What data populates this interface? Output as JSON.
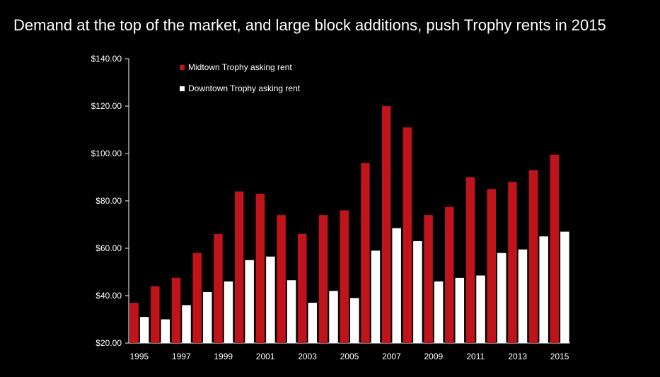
{
  "chart_data": {
    "type": "bar",
    "title": "Demand at the top of the market, and large block additions, push Trophy rents in 2015",
    "xlabel": "",
    "ylabel": "",
    "ylim": [
      20,
      140
    ],
    "y_ticks": [
      "$20.00",
      "$40.00",
      "$60.00",
      "$80.00",
      "$100.00",
      "$120.00",
      "$140.00"
    ],
    "categories": [
      "1995",
      "1996",
      "1997",
      "1998",
      "1999",
      "2000",
      "2001",
      "2002",
      "2003",
      "2004",
      "2005",
      "2006",
      "2007",
      "2008",
      "2009",
      "2010",
      "2011",
      "2012",
      "2013",
      "2014",
      "2015"
    ],
    "x_tick_labels": [
      "1995",
      "",
      "1997",
      "",
      "1999",
      "",
      "2001",
      "",
      "2003",
      "",
      "2005",
      "",
      "2007",
      "",
      "2009",
      "",
      "2011",
      "",
      "2013",
      "",
      "2015"
    ],
    "series": [
      {
        "name": "Midtown Trophy asking rent",
        "color": "#c0141c",
        "values": [
          37,
          44,
          47.5,
          58,
          66,
          84,
          83,
          74,
          66,
          74,
          76,
          96,
          120,
          111,
          74,
          77.5,
          90,
          85,
          88,
          93,
          99.5
        ]
      },
      {
        "name": "Downtown Trophy asking rent",
        "color": "#ffffff",
        "values": [
          31,
          30,
          36,
          41.5,
          46,
          55,
          56.5,
          46.5,
          37,
          42,
          39,
          59,
          68.5,
          63,
          46,
          47.5,
          48.5,
          58,
          59.5,
          65,
          67
        ]
      }
    ],
    "grid": false,
    "legend_position": "top-left"
  }
}
